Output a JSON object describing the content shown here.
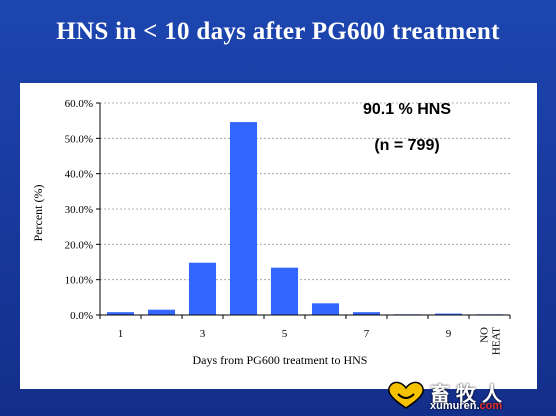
{
  "slide": {
    "title": "HNS in < 10 days after PG600 treatment",
    "background_color": "#1a3fa0"
  },
  "annotations": {
    "line1": "90.1 % HNS",
    "line2": "(n = 799)"
  },
  "watermark": {
    "name": "畜牧人",
    "url_main": "xumuren.",
    "url_tld": "com",
    "logo_icon": "heart-smile-logo-icon"
  },
  "chart_data": {
    "type": "bar",
    "title": "HNS in < 10 days after PG600 treatment",
    "xlabel": "Days from PG600 treatment to HNS",
    "ylabel": "Percent (%)",
    "ylim": [
      0,
      60
    ],
    "y_ticks": [
      "0.0%",
      "10.0%",
      "20.0%",
      "30.0%",
      "40.0%",
      "50.0%",
      "60.0%"
    ],
    "y_tick_values": [
      0,
      10,
      20,
      30,
      40,
      50,
      60
    ],
    "categories": [
      "1",
      "2",
      "3",
      "4",
      "5",
      "6",
      "7",
      "8",
      "9",
      "NO HEAT"
    ],
    "x_tick_labels": [
      "1",
      "",
      "3",
      "",
      "5",
      "",
      "7",
      "",
      "9",
      "NO HEAT"
    ],
    "values": [
      0.8,
      1.5,
      14.8,
      54.6,
      13.4,
      3.3,
      0.8,
      0.2,
      0.4,
      0.2
    ],
    "bar_color": "#3366ff",
    "grid": true,
    "legend": "none"
  }
}
